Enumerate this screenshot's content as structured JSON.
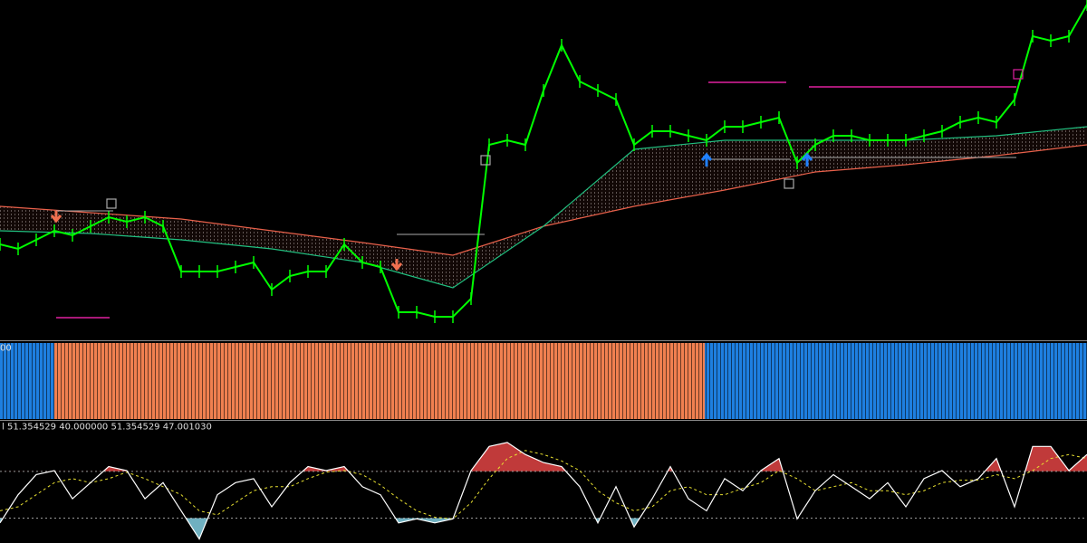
{
  "x": [
    0,
    20,
    40,
    60,
    80,
    100,
    120,
    140,
    160,
    180,
    200,
    220,
    240,
    260,
    280,
    300,
    320,
    340,
    360,
    380,
    400,
    420,
    440,
    460,
    480,
    500,
    520,
    540,
    560,
    580,
    600,
    620,
    640,
    660,
    680,
    700,
    720,
    740,
    760,
    780,
    800,
    820,
    840,
    860,
    880,
    900,
    920,
    940,
    960,
    980,
    1000,
    1020,
    1040,
    1060,
    1080,
    1100,
    1120,
    1140,
    1160,
    1180,
    1200
  ],
  "xlim": [
    0,
    1200
  ],
  "main": {
    "ylim": [
      0,
      370
    ],
    "price": {
      "color": "#00ff00",
      "values": [
        100,
        95,
        105,
        115,
        110,
        120,
        130,
        125,
        130,
        120,
        70,
        70,
        70,
        75,
        80,
        50,
        65,
        70,
        70,
        100,
        80,
        75,
        25,
        25,
        20,
        20,
        40,
        210,
        215,
        210,
        270,
        320,
        280,
        270,
        260,
        210,
        225,
        225,
        220,
        215,
        230,
        230,
        235,
        240,
        190,
        210,
        220,
        220,
        215,
        215,
        215,
        220,
        225,
        235,
        240,
        235,
        260,
        330,
        325,
        330,
        365
      ]
    },
    "ma_x": [
      0,
      100,
      200,
      300,
      400,
      500,
      600,
      700,
      800,
      900,
      1000,
      1100,
      1200
    ],
    "fast_ma": {
      "color": "#20c080",
      "values": [
        115,
        112,
        105,
        95,
        80,
        52,
        120,
        205,
        215,
        215,
        215,
        220,
        230
      ]
    },
    "slow_ma": {
      "color": "#e8604a",
      "values": [
        142,
        135,
        128,
        115,
        102,
        88,
        120,
        142,
        160,
        180,
        188,
        198,
        210
      ]
    }
  },
  "histogram": {
    "label": "00",
    "segments": [
      {
        "from": 0,
        "to": 60,
        "color": "#1e7fe0"
      },
      {
        "from": 60,
        "to": 778,
        "color": "#f08050"
      },
      {
        "from": 778,
        "to": 1200,
        "color": "#1e7fe0"
      }
    ]
  },
  "oscillator": {
    "label": "l 51.354529 40.000000 51.354529 47.001030",
    "ylim": [
      0,
      135
    ],
    "levels": [
      89,
      31
    ],
    "upper_color": "#c03a3a",
    "lower_color": "#6fb0c0",
    "main": {
      "color": "#ffffff",
      "values": [
        25,
        60,
        85,
        90,
        55,
        75,
        95,
        90,
        55,
        75,
        40,
        5,
        60,
        75,
        80,
        45,
        75,
        95,
        90,
        95,
        70,
        60,
        25,
        30,
        25,
        30,
        90,
        120,
        125,
        110,
        100,
        95,
        70,
        25,
        70,
        20,
        55,
        95,
        55,
        40,
        80,
        65,
        90,
        105,
        30,
        65,
        85,
        70,
        55,
        75,
        45,
        80,
        90,
        70,
        80,
        105,
        45,
        120,
        120,
        90,
        110
      ]
    },
    "signal": {
      "color": "#e8e030",
      "values": [
        40,
        45,
        60,
        75,
        80,
        75,
        80,
        88,
        80,
        70,
        60,
        40,
        35,
        50,
        65,
        70,
        70,
        80,
        88,
        90,
        85,
        72,
        55,
        40,
        32,
        30,
        50,
        80,
        105,
        115,
        110,
        102,
        90,
        65,
        50,
        40,
        45,
        65,
        70,
        60,
        60,
        68,
        75,
        90,
        80,
        65,
        70,
        75,
        65,
        65,
        60,
        65,
        75,
        78,
        78,
        85,
        80,
        90,
        105,
        110,
        105
      ]
    }
  }
}
